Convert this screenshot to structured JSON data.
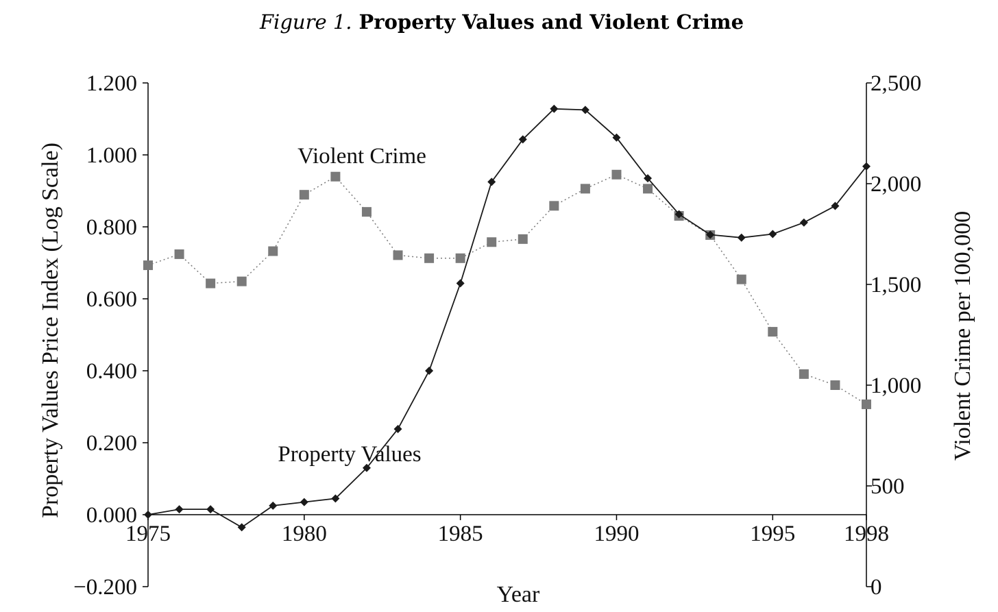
{
  "chart_data": {
    "type": "line",
    "title_prefix": "Figure 1.",
    "title": "Property Values and Violent Crime",
    "xlabel": "Year",
    "ylabel_left": "Property Values Price Index (Log Scale)",
    "ylabel_right": "Violent Crime per 100,000",
    "x_ticks": [
      "1975",
      "1980",
      "1985",
      "1990",
      "1995",
      "1998"
    ],
    "xlim": [
      1975,
      1998
    ],
    "ylim_left": [
      -0.2,
      1.2
    ],
    "ylim_right": [
      0,
      2500
    ],
    "left_ticks": [
      "1.200",
      "1.000",
      "0.800",
      "0.600",
      "0.400",
      "0.200",
      "0.000",
      "−0.200"
    ],
    "right_ticks": [
      "2,500",
      "2,000",
      "1,500",
      "1,000",
      "500",
      "0"
    ],
    "grid": false,
    "x": [
      1975,
      1976,
      1977,
      1978,
      1979,
      1980,
      1981,
      1982,
      1983,
      1984,
      1985,
      1986,
      1987,
      1988,
      1989,
      1990,
      1991,
      1992,
      1993,
      1994,
      1995,
      1996,
      1997,
      1998
    ],
    "series": [
      {
        "name": "Property Values",
        "axis": "left",
        "marker": "diamond",
        "line": "solid",
        "color": "#1a1a1a",
        "values": [
          0.0,
          0.015,
          0.015,
          -0.035,
          0.025,
          0.035,
          0.045,
          0.13,
          0.238,
          0.4,
          0.643,
          0.925,
          1.043,
          1.128,
          1.125,
          1.048,
          0.935,
          0.835,
          0.778,
          0.77,
          0.78,
          0.812,
          0.858,
          0.968
        ]
      },
      {
        "name": "Violent Crime",
        "axis": "right",
        "marker": "square",
        "line": "dotted",
        "color": "#7a7a7a",
        "values": [
          1595,
          1650,
          1505,
          1515,
          1665,
          1945,
          2035,
          1860,
          1645,
          1630,
          1630,
          1710,
          1725,
          1890,
          1975,
          2045,
          1975,
          1840,
          1745,
          1525,
          1265,
          1055,
          1000,
          905
        ]
      }
    ],
    "annotations": [
      "Violent Crime",
      "Property Values"
    ]
  }
}
